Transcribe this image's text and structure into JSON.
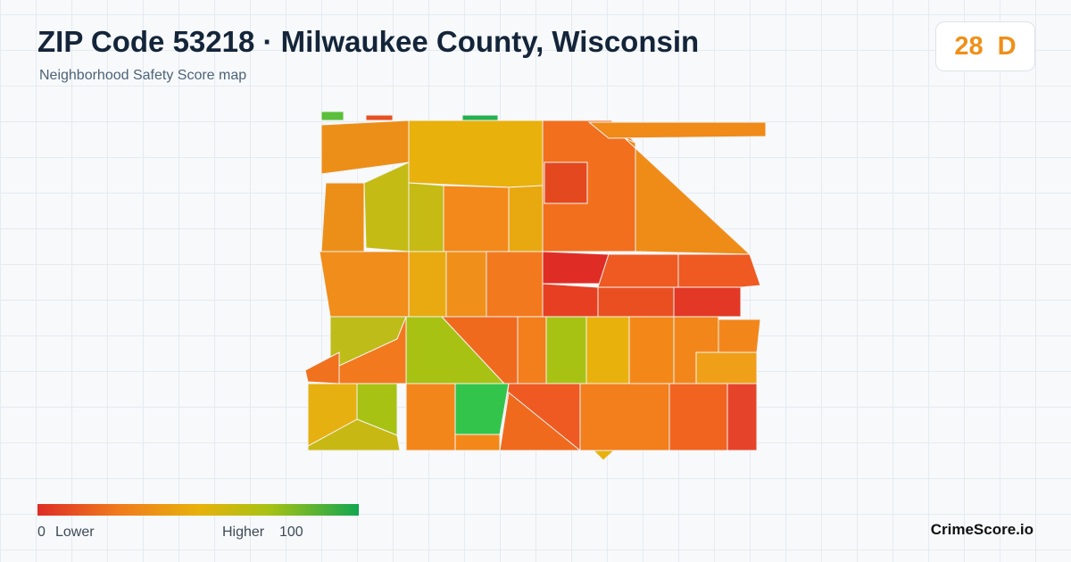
{
  "header": {
    "title": "ZIP Code 53218 · Milwaukee County, Wisconsin",
    "subtitle": "Neighborhood Safety Score map",
    "score": 28,
    "grade": "D"
  },
  "legend": {
    "min": 0,
    "min_label": "Lower",
    "max_label": "Higher",
    "max": 100
  },
  "footer": {
    "brand": "CrimeScore.io"
  }
}
